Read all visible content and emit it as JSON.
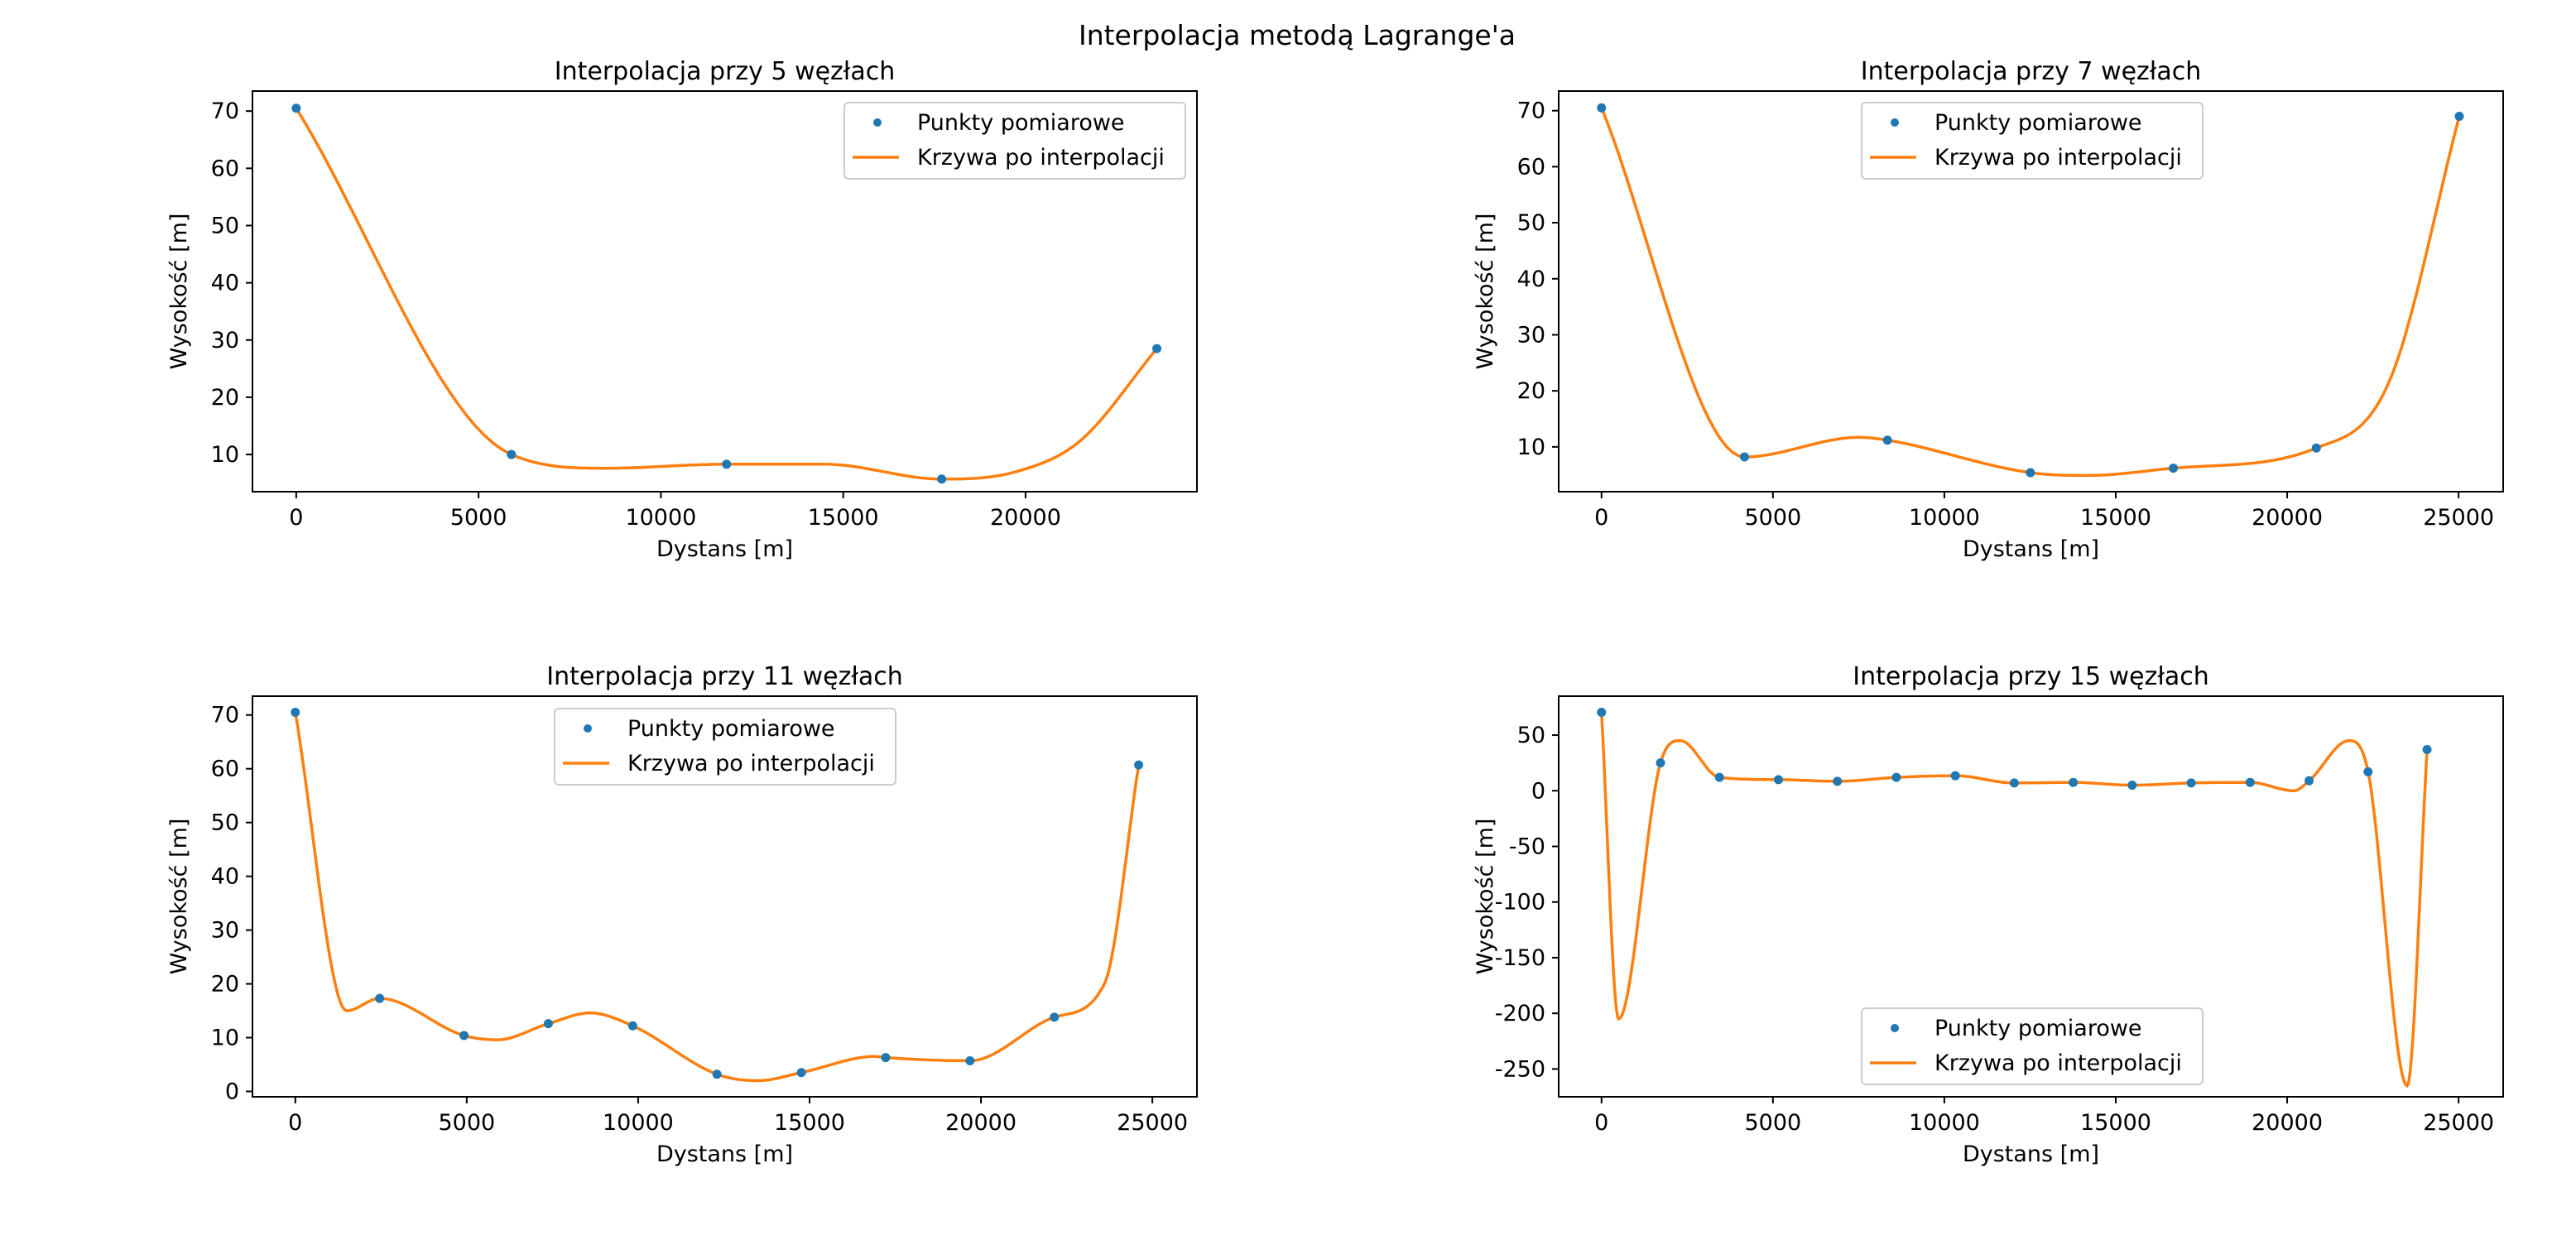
{
  "figure": {
    "title": "Interpolacja metodą Lagrange'a"
  },
  "style": {
    "points_color": "#1f77b4",
    "curve_color": "#ff7f0e",
    "axes_color": "#000000",
    "legend_border": "#cccccc"
  },
  "legend": {
    "points_label": "Punkty pomiarowe",
    "curve_label": "Krzywa po interpolacji"
  },
  "chart_data": [
    {
      "type": "line",
      "title": "Interpolacja przy 5 węzłach",
      "xlabel": "Dystans [m]",
      "ylabel": "Wysokość [m]",
      "xlim": [
        -1200,
        24700
      ],
      "ylim": [
        3.5,
        73.5
      ],
      "xticks": [
        0,
        5000,
        10000,
        15000,
        20000
      ],
      "yticks": [
        10,
        20,
        30,
        40,
        50,
        60,
        70
      ],
      "legend_position": "upper right",
      "series": [
        {
          "name": "Punkty pomiarowe",
          "kind": "scatter",
          "x": [
            0,
            5900,
            11800,
            17700,
            23600
          ],
          "y": [
            70.5,
            10,
            8.3,
            5.7,
            28.5
          ]
        },
        {
          "name": "Krzywa po interpolacji",
          "kind": "line",
          "x": [
            0,
            5900,
            8500,
            11800,
            14500,
            17700,
            19800,
            21500,
            23600
          ],
          "y": [
            70.5,
            10,
            7.6,
            8.3,
            8.3,
            5.7,
            7.1,
            12.4,
            28.5
          ]
        }
      ]
    },
    {
      "type": "line",
      "title": "Interpolacja przy 7 węzłach",
      "xlabel": "Dystans [m]",
      "ylabel": "Wysokość [m]",
      "xlim": [
        -1250,
        26300
      ],
      "ylim": [
        2.0,
        73.5
      ],
      "xticks": [
        0,
        5000,
        10000,
        15000,
        20000,
        25000
      ],
      "yticks": [
        10,
        20,
        30,
        40,
        50,
        60,
        70
      ],
      "legend_position": "upper center",
      "series": [
        {
          "name": "Punkty pomiarowe",
          "kind": "scatter",
          "x": [
            0,
            4170,
            8340,
            12510,
            16680,
            20850,
            25020
          ],
          "y": [
            70.5,
            8.2,
            11.2,
            5.4,
            6.2,
            9.8,
            69.0
          ]
        },
        {
          "name": "Krzywa po interpolacji",
          "kind": "line",
          "x": [
            0,
            4170,
            7500,
            8340,
            12510,
            14200,
            16680,
            20850,
            23000,
            25020
          ],
          "y": [
            70.5,
            8.2,
            11.7,
            11.2,
            5.4,
            4.9,
            6.2,
            9.8,
            22.0,
            69.0
          ]
        }
      ]
    },
    {
      "type": "line",
      "title": "Interpolacja przy 11 węzłach",
      "xlabel": "Dystans [m]",
      "ylabel": "Wysokość [m]",
      "xlim": [
        -1250,
        26300
      ],
      "ylim": [
        -1.0,
        73.5
      ],
      "xticks": [
        0,
        5000,
        10000,
        15000,
        20000,
        25000
      ],
      "yticks": [
        0,
        10,
        20,
        30,
        40,
        50,
        60,
        70
      ],
      "legend_position": "upper center",
      "series": [
        {
          "name": "Punkty pomiarowe",
          "kind": "scatter",
          "x": [
            0,
            2460,
            4920,
            7380,
            9840,
            12300,
            14760,
            17220,
            19680,
            22140,
            24600
          ],
          "y": [
            70.5,
            17.3,
            10.4,
            12.6,
            12.2,
            3.2,
            3.5,
            6.3,
            5.7,
            13.8,
            60.7
          ]
        },
        {
          "name": "Krzywa po interpolacji",
          "kind": "line",
          "x": [
            0,
            1500,
            2460,
            4920,
            5900,
            7380,
            8600,
            9840,
            12300,
            13500,
            14760,
            16900,
            17220,
            19680,
            22140,
            23600,
            24600
          ],
          "y": [
            70.5,
            15.0,
            17.3,
            10.4,
            9.6,
            12.6,
            14.6,
            12.2,
            3.2,
            2.0,
            3.5,
            6.5,
            6.3,
            5.7,
            13.8,
            20.0,
            60.7
          ]
        }
      ]
    },
    {
      "type": "line",
      "title": "Interpolacja przy 15 węzłach",
      "xlabel": "Dystans [m]",
      "ylabel": "Wysokość [m]",
      "xlim": [
        -1250,
        26300
      ],
      "ylim": [
        -275,
        85
      ],
      "xticks": [
        0,
        5000,
        10000,
        15000,
        20000,
        25000
      ],
      "yticks": [
        -250,
        -200,
        -150,
        -100,
        -50,
        0,
        50
      ],
      "legend_position": "lower center",
      "series": [
        {
          "name": "Punkty pomiarowe",
          "kind": "scatter",
          "x": [
            0,
            1720,
            3440,
            5160,
            6880,
            8600,
            10320,
            12040,
            13760,
            15480,
            17200,
            18920,
            20640,
            22360,
            24080
          ],
          "y": [
            70.5,
            25,
            12,
            10,
            8.5,
            12,
            13.5,
            7,
            7.5,
            5,
            7,
            7.5,
            9,
            17,
            37
          ]
        },
        {
          "name": "Krzywa po interpolacji",
          "kind": "line",
          "x": [
            0,
            500,
            1720,
            2300,
            3440,
            5160,
            6880,
            8600,
            10320,
            12040,
            13760,
            15480,
            17200,
            18920,
            20200,
            20640,
            21800,
            22360,
            23500,
            24080
          ],
          "y": [
            70.5,
            -205,
            25,
            45,
            12,
            10,
            8.5,
            12,
            13.5,
            7,
            7.5,
            5,
            7,
            7.5,
            0,
            9,
            45,
            17,
            -265,
            37
          ]
        }
      ]
    }
  ]
}
